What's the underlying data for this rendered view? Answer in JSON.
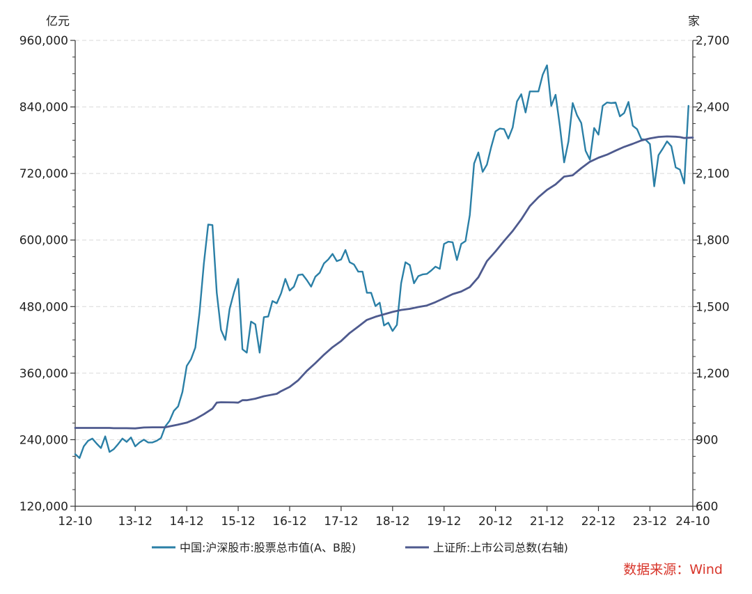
{
  "colors": {
    "market_cap": "#2a7fa6",
    "listed_companies": "#4e5a8e",
    "axis": "#333333",
    "grid": "#d9d9d9",
    "source": "#d8352a"
  },
  "chart_data": {
    "type": "line",
    "left_unit": "亿元",
    "right_unit": "家",
    "source": "数据来源：Wind",
    "x_categories": [
      "12-10",
      "13-12",
      "14-12",
      "15-12",
      "16-12",
      "17-12",
      "18-12",
      "19-12",
      "20-12",
      "21-12",
      "22-12",
      "23-12",
      "24-10"
    ],
    "left_axis": {
      "ylim": [
        120000,
        960000
      ],
      "ticks": [
        120000,
        240000,
        360000,
        480000,
        600000,
        720000,
        840000,
        960000
      ],
      "tick_labels": [
        "120,000",
        "240,000",
        "360,000",
        "480,000",
        "600,000",
        "720,000",
        "840,000",
        "960,000"
      ]
    },
    "right_axis": {
      "ylim": [
        600,
        2700
      ],
      "ticks": [
        600,
        900,
        1200,
        1500,
        1800,
        2100,
        2400,
        2700
      ],
      "tick_labels": [
        "600",
        "900",
        "1,200",
        "1,500",
        "1,800",
        "2,100",
        "2,400",
        "2,700"
      ]
    },
    "x_range_months": [
      0,
      144
    ],
    "category_months": [
      0,
      14,
      26,
      38,
      50,
      62,
      74,
      86,
      98,
      110,
      122,
      134,
      144
    ],
    "series": [
      {
        "name": "中国:沪深股市:股票总市值(A、B股)",
        "axis": "left",
        "points": [
          [
            0,
            214000
          ],
          [
            1,
            207000
          ],
          [
            2,
            228000
          ],
          [
            3,
            238000
          ],
          [
            4,
            242000
          ],
          [
            5,
            233000
          ],
          [
            6,
            225000
          ],
          [
            7,
            246000
          ],
          [
            8,
            218000
          ],
          [
            9,
            223000
          ],
          [
            10,
            232000
          ],
          [
            11,
            242000
          ],
          [
            12,
            236000
          ],
          [
            13,
            244000
          ],
          [
            14,
            228000
          ],
          [
            15,
            235000
          ],
          [
            16,
            240000
          ],
          [
            17,
            235000
          ],
          [
            18,
            235000
          ],
          [
            19,
            238000
          ],
          [
            20,
            243000
          ],
          [
            21,
            264000
          ],
          [
            22,
            274000
          ],
          [
            23,
            292000
          ],
          [
            24,
            300000
          ],
          [
            25,
            326000
          ],
          [
            26,
            373000
          ],
          [
            27,
            385000
          ],
          [
            28,
            406000
          ],
          [
            29,
            470000
          ],
          [
            30,
            558000
          ],
          [
            31,
            628000
          ],
          [
            32,
            627000
          ],
          [
            33,
            505000
          ],
          [
            34,
            438000
          ],
          [
            35,
            420000
          ],
          [
            36,
            476000
          ],
          [
            37,
            505000
          ],
          [
            38,
            530000
          ],
          [
            39,
            403000
          ],
          [
            40,
            397000
          ],
          [
            41,
            453000
          ],
          [
            42,
            448000
          ],
          [
            43,
            397000
          ],
          [
            44,
            461000
          ],
          [
            45,
            462000
          ],
          [
            46,
            490000
          ],
          [
            47,
            486000
          ],
          [
            48,
            504000
          ],
          [
            49,
            530000
          ],
          [
            50,
            509000
          ],
          [
            51,
            516000
          ],
          [
            52,
            537000
          ],
          [
            53,
            538000
          ],
          [
            54,
            528000
          ],
          [
            55,
            516000
          ],
          [
            56,
            534000
          ],
          [
            57,
            541000
          ],
          [
            58,
            558000
          ],
          [
            59,
            565000
          ],
          [
            60,
            575000
          ],
          [
            61,
            562000
          ],
          [
            62,
            565000
          ],
          [
            63,
            582000
          ],
          [
            64,
            560000
          ],
          [
            65,
            556000
          ],
          [
            66,
            543000
          ],
          [
            67,
            543000
          ],
          [
            68,
            505000
          ],
          [
            69,
            505000
          ],
          [
            70,
            481000
          ],
          [
            71,
            487000
          ],
          [
            72,
            446000
          ],
          [
            73,
            451000
          ],
          [
            74,
            436000
          ],
          [
            75,
            447000
          ],
          [
            76,
            522000
          ],
          [
            77,
            560000
          ],
          [
            78,
            555000
          ],
          [
            79,
            522000
          ],
          [
            80,
            535000
          ],
          [
            81,
            538000
          ],
          [
            82,
            539000
          ],
          [
            83,
            545000
          ],
          [
            84,
            552000
          ],
          [
            85,
            548000
          ],
          [
            86,
            593000
          ],
          [
            87,
            597000
          ],
          [
            88,
            596000
          ],
          [
            89,
            564000
          ],
          [
            90,
            593000
          ],
          [
            91,
            598000
          ],
          [
            92,
            645000
          ],
          [
            93,
            738000
          ],
          [
            94,
            758000
          ],
          [
            95,
            723000
          ],
          [
            96,
            736000
          ],
          [
            97,
            768000
          ],
          [
            98,
            796000
          ],
          [
            99,
            801000
          ],
          [
            100,
            800000
          ],
          [
            101,
            783000
          ],
          [
            102,
            803000
          ],
          [
            103,
            850000
          ],
          [
            104,
            863000
          ],
          [
            105,
            830000
          ],
          [
            106,
            868000
          ],
          [
            107,
            868000
          ],
          [
            108,
            868000
          ],
          [
            109,
            898000
          ],
          [
            110,
            915000
          ],
          [
            111,
            842000
          ],
          [
            112,
            862000
          ],
          [
            113,
            806000
          ],
          [
            114,
            740000
          ],
          [
            115,
            778000
          ],
          [
            116,
            847000
          ],
          [
            117,
            825000
          ],
          [
            118,
            811000
          ],
          [
            119,
            761000
          ],
          [
            120,
            745000
          ],
          [
            121,
            802000
          ],
          [
            122,
            790000
          ],
          [
            123,
            842000
          ],
          [
            124,
            848000
          ],
          [
            125,
            847000
          ],
          [
            126,
            848000
          ],
          [
            127,
            823000
          ],
          [
            128,
            829000
          ],
          [
            129,
            849000
          ],
          [
            130,
            806000
          ],
          [
            131,
            800000
          ],
          [
            132,
            782000
          ],
          [
            133,
            781000
          ],
          [
            134,
            773000
          ],
          [
            135,
            697000
          ],
          [
            136,
            753000
          ],
          [
            137,
            765000
          ],
          [
            138,
            778000
          ],
          [
            139,
            769000
          ],
          [
            140,
            731000
          ],
          [
            141,
            727000
          ],
          [
            142,
            702000
          ],
          [
            143,
            842000
          ]
        ]
      },
      {
        "name": "上证所:上市公司总数(右轴)",
        "axis": "right",
        "points": [
          [
            0,
            953
          ],
          [
            4,
            953
          ],
          [
            6,
            953
          ],
          [
            8,
            953
          ],
          [
            9,
            952
          ],
          [
            12,
            952
          ],
          [
            14,
            951
          ],
          [
            16,
            955
          ],
          [
            18,
            956
          ],
          [
            21,
            956
          ],
          [
            22,
            960
          ],
          [
            24,
            968
          ],
          [
            26,
            977
          ],
          [
            28,
            993
          ],
          [
            30,
            1015
          ],
          [
            32,
            1040
          ],
          [
            33,
            1067
          ],
          [
            34,
            1069
          ],
          [
            37,
            1068
          ],
          [
            38,
            1067
          ],
          [
            39,
            1078
          ],
          [
            40,
            1078
          ],
          [
            42,
            1085
          ],
          [
            44,
            1096
          ],
          [
            47,
            1107
          ],
          [
            48,
            1119
          ],
          [
            50,
            1138
          ],
          [
            52,
            1168
          ],
          [
            54,
            1210
          ],
          [
            56,
            1245
          ],
          [
            58,
            1283
          ],
          [
            60,
            1317
          ],
          [
            62,
            1345
          ],
          [
            64,
            1381
          ],
          [
            66,
            1410
          ],
          [
            68,
            1440
          ],
          [
            70,
            1454
          ],
          [
            72,
            1465
          ],
          [
            74,
            1476
          ],
          [
            76,
            1485
          ],
          [
            78,
            1490
          ],
          [
            80,
            1498
          ],
          [
            82,
            1505
          ],
          [
            84,
            1520
          ],
          [
            86,
            1538
          ],
          [
            88,
            1556
          ],
          [
            90,
            1568
          ],
          [
            92,
            1588
          ],
          [
            94,
            1632
          ],
          [
            96,
            1705
          ],
          [
            98,
            1749
          ],
          [
            100,
            1796
          ],
          [
            102,
            1841
          ],
          [
            104,
            1893
          ],
          [
            106,
            1953
          ],
          [
            108,
            1993
          ],
          [
            110,
            2026
          ],
          [
            112,
            2051
          ],
          [
            114,
            2086
          ],
          [
            116,
            2092
          ],
          [
            118,
            2124
          ],
          [
            120,
            2153
          ],
          [
            122,
            2171
          ],
          [
            124,
            2185
          ],
          [
            126,
            2203
          ],
          [
            128,
            2220
          ],
          [
            130,
            2234
          ],
          [
            132,
            2249
          ],
          [
            134,
            2258
          ],
          [
            136,
            2265
          ],
          [
            138,
            2267
          ],
          [
            140,
            2266
          ],
          [
            141,
            2264
          ],
          [
            142,
            2260
          ],
          [
            144,
            2262
          ]
        ]
      }
    ]
  }
}
